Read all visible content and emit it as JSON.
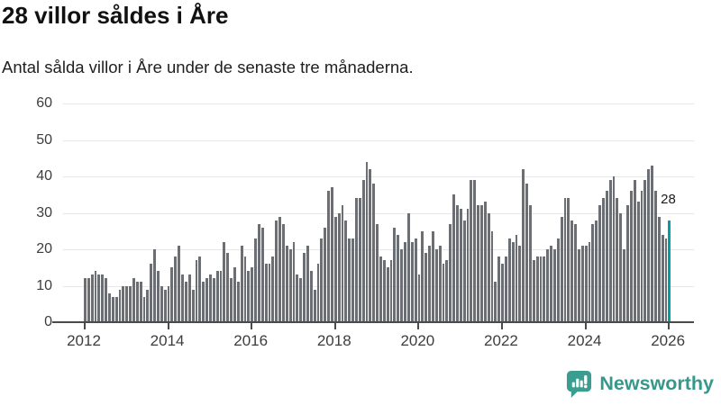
{
  "header": {
    "title": "28 villor såldes i Åre",
    "subtitle": "Antal sålda villor i Åre under de senaste tre månaderna."
  },
  "chart_data": {
    "type": "bar",
    "frequency": "monthly",
    "x_range": [
      "2012-01",
      "2026-01"
    ],
    "values": [
      12,
      12,
      13,
      14,
      13,
      13,
      12,
      8,
      7,
      7,
      9,
      10,
      10,
      10,
      12,
      11,
      11,
      7,
      9,
      16,
      20,
      14,
      10,
      9,
      10,
      15,
      18,
      21,
      13,
      11,
      13,
      9,
      17,
      18,
      11,
      12,
      13,
      12,
      14,
      14,
      22,
      19,
      12,
      15,
      11,
      21,
      18,
      14,
      15,
      23,
      27,
      26,
      16,
      16,
      18,
      28,
      29,
      27,
      21,
      20,
      22,
      13,
      12,
      19,
      21,
      14,
      9,
      16,
      23,
      26,
      36,
      37,
      29,
      30,
      32,
      28,
      23,
      23,
      34,
      34,
      39,
      44,
      42,
      38,
      27,
      18,
      17,
      15,
      17,
      26,
      24,
      20,
      22,
      30,
      22,
      23,
      13,
      25,
      19,
      21,
      25,
      20,
      21,
      16,
      17,
      27,
      35,
      32,
      31,
      28,
      31,
      39,
      39,
      32,
      32,
      33,
      30,
      25,
      11,
      18,
      16,
      18,
      23,
      22,
      24,
      21,
      42,
      38,
      32,
      17,
      18,
      18,
      18,
      20,
      21,
      20,
      23,
      29,
      34,
      34,
      28,
      27,
      20,
      21,
      21,
      22,
      27,
      28,
      32,
      34,
      36,
      39,
      40,
      34,
      30,
      20,
      32,
      36,
      39,
      33,
      36,
      39,
      42,
      43,
      36,
      29,
      24,
      23,
      28
    ],
    "highlight_index": 168,
    "highlight_value_label": "28",
    "y_ticks": [
      0,
      10,
      20,
      30,
      40,
      50,
      60
    ],
    "x_tick_years": [
      "2012",
      "2014",
      "2016",
      "2018",
      "2020",
      "2022",
      "2024",
      "2026"
    ],
    "ylim": [
      0,
      60
    ],
    "grid": true,
    "legend": "none",
    "bar_color": "#6b6e73",
    "highlight_color": "#00a0a4"
  },
  "branding": {
    "logo_text": "Newsworthy",
    "logo_color": "#35988a",
    "logo_icon": "bar-chart-speech-bubble-icon"
  }
}
